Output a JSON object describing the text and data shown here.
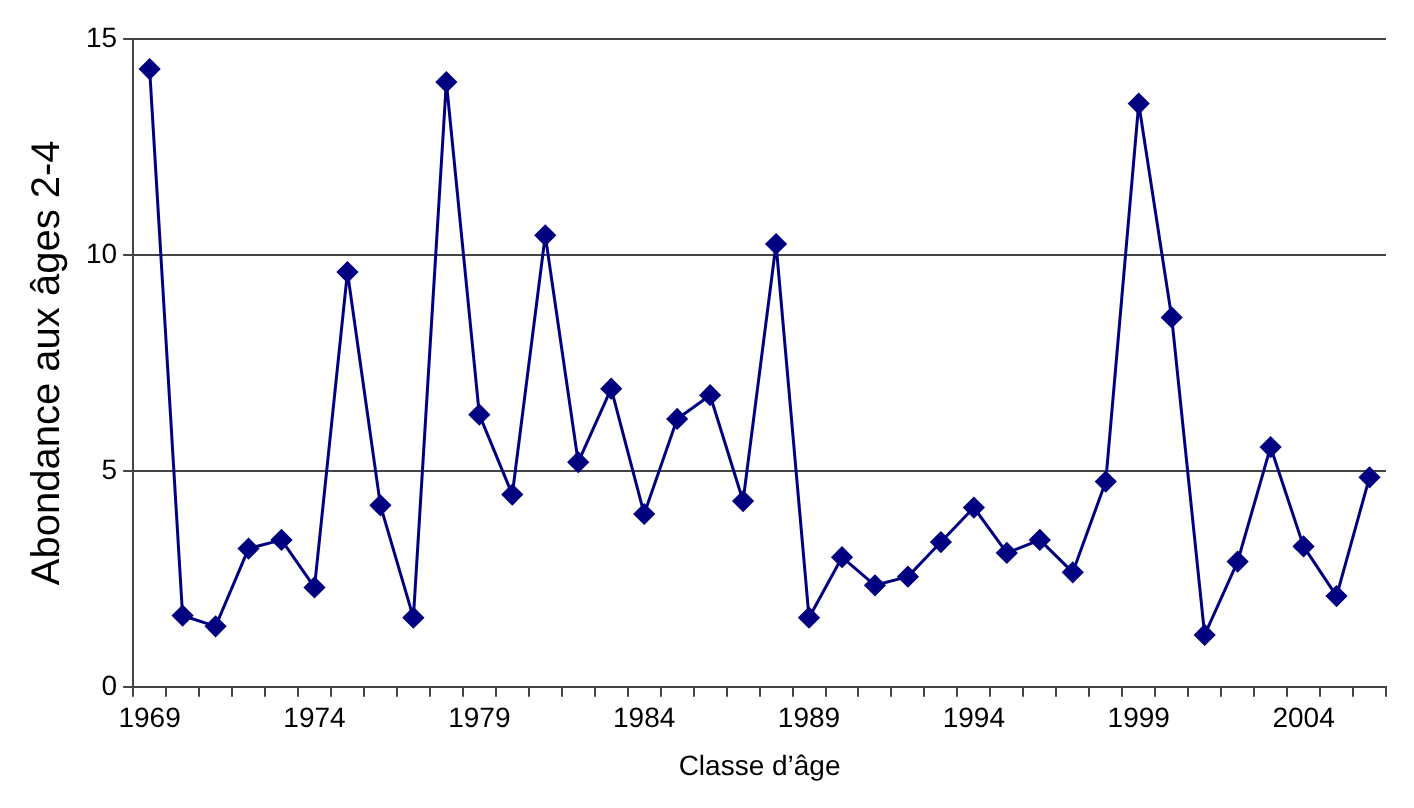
{
  "chart_data": {
    "type": "line",
    "xlabel": "Classe d’âge",
    "ylabel": "Abondance aux âges 2-4",
    "categories": [
      "1969",
      null,
      null,
      null,
      null,
      "1974",
      null,
      null,
      null,
      null,
      "1979",
      null,
      null,
      null,
      null,
      "1984",
      null,
      null,
      null,
      null,
      "1989",
      null,
      null,
      null,
      null,
      "1994",
      null,
      null,
      null,
      null,
      "1999",
      null,
      null,
      null,
      null,
      "2004",
      null,
      null
    ],
    "series": [
      {
        "color": "#000080",
        "values": [
          14.3,
          1.65,
          1.4,
          3.2,
          3.4,
          2.3,
          9.6,
          4.2,
          1.6,
          14.0,
          6.3,
          4.45,
          10.45,
          5.2,
          6.9,
          4.0,
          6.2,
          6.75,
          4.3,
          10.25,
          1.6,
          3.0,
          2.35,
          2.55,
          3.35,
          4.15,
          3.1,
          3.4,
          2.65,
          4.75,
          13.5,
          8.55,
          1.2,
          2.9,
          5.55,
          3.25,
          2.1,
          4.85
        ]
      }
    ],
    "ylim": [
      0,
      15
    ],
    "yticks": [
      0,
      5,
      10,
      15
    ],
    "grid": "y",
    "legend": false,
    "marker": "diamond",
    "line_style": "solid"
  }
}
